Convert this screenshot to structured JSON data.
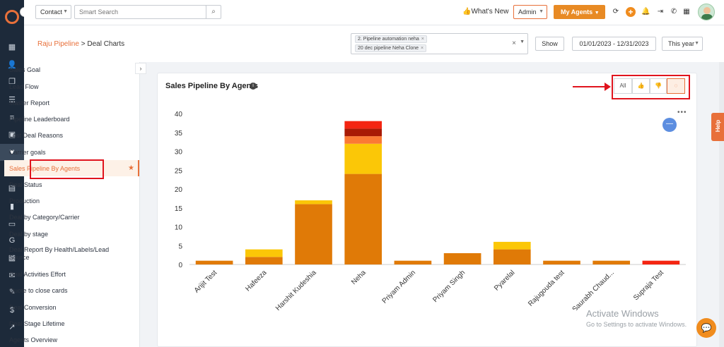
{
  "colors": {
    "accent": "#e8703a",
    "brand_button": "#e88a24",
    "sidebar_bg": "#1d2a3a",
    "annotation_red": "#e0141e"
  },
  "rail": {
    "icons": [
      "logo-icon",
      "dashboard-icon",
      "contacts-icon",
      "documents-icon",
      "list-icon",
      "contact-card-icon",
      "pipeline-icon",
      "campaign-icon",
      "reports-icon",
      "analytics-icon",
      "folder-icon",
      "google-icon",
      "calendar-icon",
      "mail-icon",
      "signature-icon",
      "dollar-icon",
      "trend-icon"
    ],
    "collapse_label": "›"
  },
  "topbar": {
    "contact_select": "Contact",
    "search_placeholder": "Smart Search",
    "whats_new": "👍What's New",
    "admin_select": "Admin",
    "my_agents": "My Agents",
    "plus": "+"
  },
  "header": {
    "breadcrumb_link": "Raju Pipeline",
    "breadcrumb_sep": " > ",
    "breadcrumb_current": "Deal Charts",
    "pipeline_chips": [
      "2. Pipeline automation neha",
      "20 dec pipeline Neha Clone"
    ],
    "chip_remove": "×",
    "clear": "×",
    "show_button": "Show",
    "date_range": "01/01/2023 - 12/31/2023",
    "period": "This year"
  },
  "menu": {
    "items": [
      "Sales Goal",
      "Lead Flow",
      "Master Report",
      "Pipeline Leaderboard",
      "Lost Deal Reasons",
      "Carrier goals",
      "Sales Pipeline By Agents",
      "Deal Status",
      "Production",
      "Deal by Category/Carrier",
      "Deal by stage",
      "Deal Report By Health/Labels/Lead Source",
      "Deal Activities Effort",
      "Quote to close cards",
      "Deal Conversion",
      "Deal Stage Lifetime",
      "Agents Overview"
    ],
    "active_index": 6
  },
  "card": {
    "title": "Sales Pipeline By Agents",
    "info": "i",
    "filters": {
      "all": "All"
    },
    "more": "•••"
  },
  "chart_data": {
    "type": "bar",
    "stacked": true,
    "title": "Sales Pipeline By Agents",
    "categories": [
      "Arijit Test",
      "Hafeeza",
      "Harshit Kudeshia",
      "Neha",
      "Priyam Admin",
      "Priyam Singh",
      "Pyarelal",
      "Rajugouda test",
      "Saurabh Chaud...",
      "Supraja Test"
    ],
    "ylim": [
      0,
      40
    ],
    "yticks": [
      0,
      5,
      10,
      15,
      20,
      25,
      30,
      35,
      40
    ],
    "series": [
      {
        "color": "#e07a07",
        "values": [
          1,
          2,
          16,
          24,
          1,
          3,
          4,
          1,
          1,
          0
        ]
      },
      {
        "color": "#fbc707",
        "values": [
          0,
          2,
          1,
          8,
          0,
          0,
          2,
          0,
          0,
          0
        ]
      },
      {
        "color": "#fb7a34",
        "values": [
          0,
          0,
          0,
          2,
          0,
          0,
          0,
          0,
          0,
          0
        ]
      },
      {
        "color": "#a81a05",
        "values": [
          0,
          0,
          0,
          2,
          0,
          0,
          0,
          0,
          0,
          0
        ]
      },
      {
        "color": "#f42512",
        "values": [
          0,
          0,
          0,
          2,
          0,
          0,
          0,
          0,
          0,
          1
        ]
      }
    ],
    "grid": false,
    "legend": "none"
  },
  "help": "Help",
  "windows": {
    "title": "Activate Windows",
    "subtitle": "Go to Settings to activate Windows."
  }
}
